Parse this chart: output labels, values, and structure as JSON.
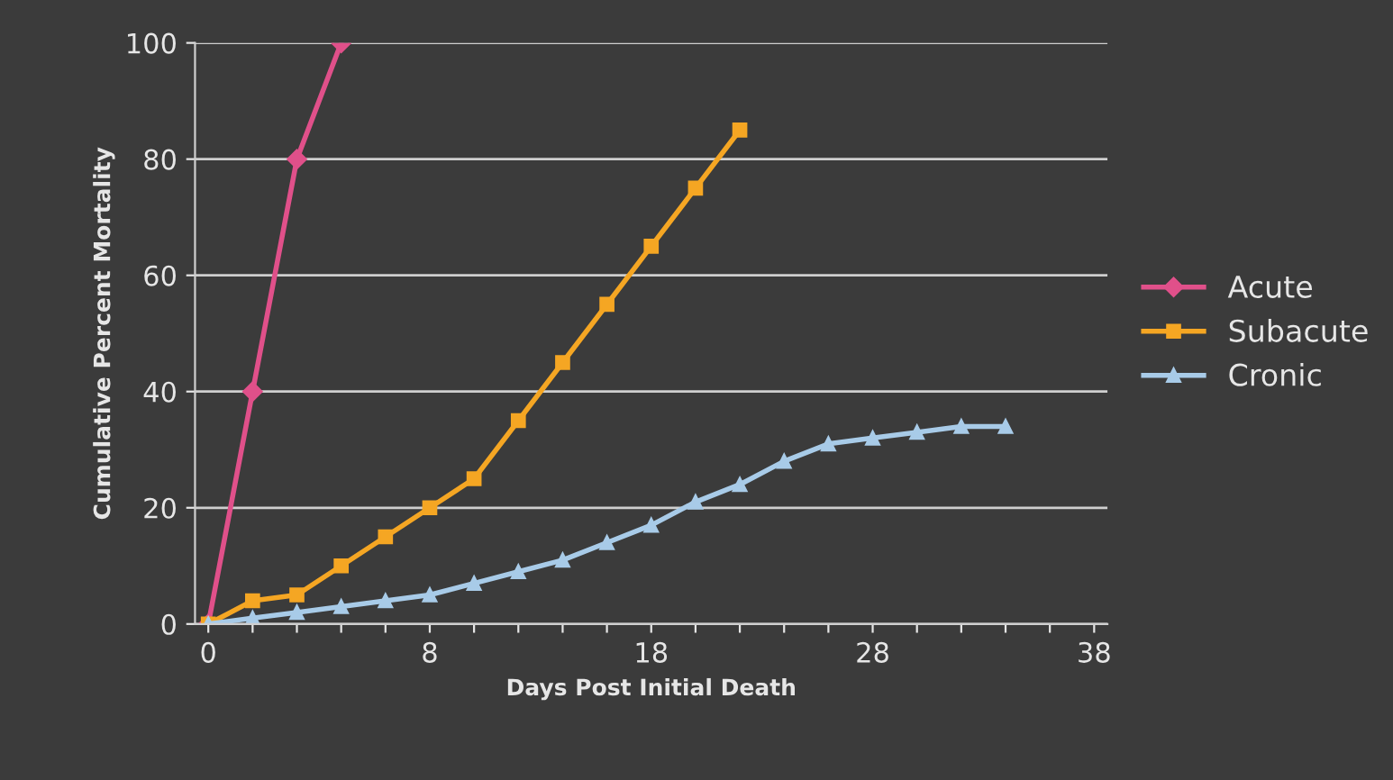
{
  "chart_data": {
    "type": "line",
    "xlabel": "Days Post Initial Death",
    "ylabel": "Cumulative Percent Mortality",
    "categories": [
      "0",
      null,
      null,
      null,
      null,
      "8",
      null,
      null,
      null,
      null,
      "18",
      null,
      null,
      null,
      null,
      "28",
      null,
      null,
      null,
      null,
      "38"
    ],
    "series": [
      {
        "name": "Acute",
        "color": "#e0508a",
        "marker": "diamond",
        "values": [
          0,
          40,
          80,
          100,
          null,
          null,
          null,
          null,
          null,
          null,
          null,
          null,
          null,
          null,
          null,
          null,
          null,
          null,
          null,
          null,
          null
        ]
      },
      {
        "name": "Subacute",
        "color": "#f5a623",
        "marker": "square",
        "values": [
          0,
          4,
          5,
          10,
          15,
          20,
          25,
          35,
          45,
          55,
          65,
          75,
          85,
          null,
          null,
          null,
          null,
          null,
          null,
          null,
          null
        ]
      },
      {
        "name": "Cronic",
        "color": "#a8cbe8",
        "marker": "triangle",
        "values": [
          0,
          1,
          2,
          3,
          4,
          5,
          7,
          9,
          11,
          14,
          17,
          21,
          24,
          28,
          31,
          32,
          33,
          34,
          34,
          null,
          null
        ]
      }
    ],
    "ylim": [
      0,
      100
    ],
    "yticks": [
      0,
      20,
      40,
      60,
      80,
      100
    ],
    "grid": "y",
    "legend": "right"
  }
}
